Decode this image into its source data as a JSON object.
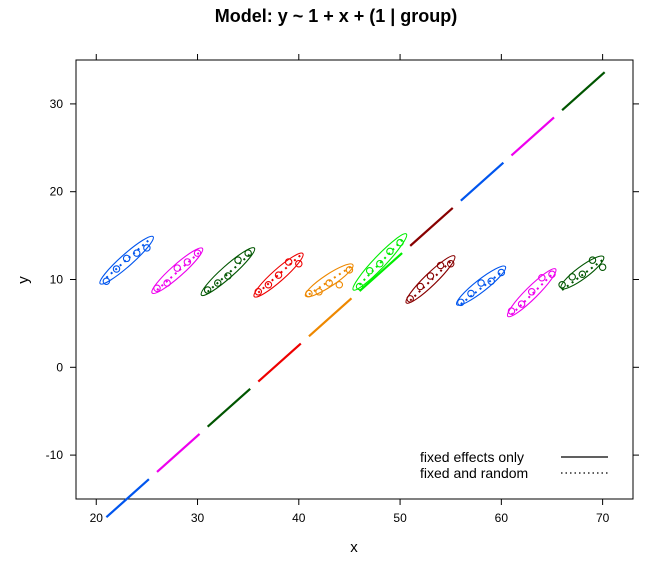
{
  "chart_data": {
    "type": "scatter",
    "title": "Model: y ~ 1 + x + (1 | group)",
    "xlabel": "x",
    "ylabel": "y",
    "xlim": [
      18,
      73
    ],
    "ylim": [
      -15,
      35
    ],
    "x_ticks": [
      20,
      30,
      40,
      50,
      60,
      70
    ],
    "y_ticks": [
      -10,
      0,
      10,
      20,
      30
    ],
    "grid": false,
    "legend": {
      "position": "bottom-right",
      "entries": [
        {
          "label": "fixed effects only",
          "linestyle": "solid"
        },
        {
          "label": "fixed and random",
          "linestyle": "dotted"
        }
      ]
    },
    "fixed_effects_line": {
      "intercept": -38.7,
      "slope": 1.03,
      "segments": [
        {
          "x": [
            21,
            25.2
          ],
          "color": "#0055EE"
        },
        {
          "x": [
            26,
            30.2
          ],
          "color": "#EE00EE"
        },
        {
          "x": [
            31,
            35.2
          ],
          "color": "#005500"
        },
        {
          "x": [
            36,
            40.2
          ],
          "color": "#EE0000"
        },
        {
          "x": [
            41,
            45.2
          ],
          "color": "#EE8800"
        },
        {
          "x": [
            46,
            50.2
          ],
          "color": "#00EE00"
        },
        {
          "x": [
            51,
            55.2
          ],
          "color": "#880000"
        },
        {
          "x": [
            56,
            60.2
          ],
          "color": "#0055EE"
        },
        {
          "x": [
            61,
            65.2
          ],
          "color": "#EE00EE"
        },
        {
          "x": [
            66,
            70.2
          ],
          "color": "#005500"
        }
      ]
    },
    "groups": [
      {
        "color": "#0055EE",
        "x": [
          21,
          22,
          23,
          24,
          25
        ],
        "y": [
          9.8,
          11.2,
          12.4,
          13.0,
          13.6
        ],
        "random_line": {
          "x": [
            21,
            25.2
          ],
          "y": [
            10.2,
            14.5
          ]
        },
        "ellipse": {
          "cx": 23,
          "cy": 12.2,
          "rx": 2.5,
          "ry": 3.3
        }
      },
      {
        "color": "#EE00EE",
        "x": [
          26,
          27,
          28,
          29,
          30
        ],
        "y": [
          9.0,
          9.6,
          11.3,
          12.0,
          13.0
        ],
        "random_line": {
          "x": [
            26,
            30.2
          ],
          "y": [
            8.8,
            13.1
          ]
        },
        "ellipse": {
          "cx": 28,
          "cy": 11.0,
          "rx": 2.5,
          "ry": 3.0
        }
      },
      {
        "color": "#005500",
        "x": [
          31,
          32,
          33,
          34,
          35
        ],
        "y": [
          8.8,
          9.6,
          10.4,
          12.2,
          13.0
        ],
        "random_line": {
          "x": [
            31,
            35.2
          ],
          "y": [
            8.6,
            12.9
          ]
        },
        "ellipse": {
          "cx": 33,
          "cy": 10.9,
          "rx": 2.5,
          "ry": 3.3
        }
      },
      {
        "color": "#EE0000",
        "x": [
          36,
          37,
          38,
          39,
          40
        ],
        "y": [
          8.6,
          9.4,
          10.5,
          12.0,
          11.8
        ],
        "random_line": {
          "x": [
            36,
            40.2
          ],
          "y": [
            8.5,
            12.8
          ]
        },
        "ellipse": {
          "cx": 38,
          "cy": 10.5,
          "rx": 2.5,
          "ry": 2.8
        }
      },
      {
        "color": "#EE8800",
        "x": [
          41,
          42,
          43,
          44,
          45
        ],
        "y": [
          8.4,
          8.6,
          9.6,
          9.4,
          11.1
        ],
        "random_line": {
          "x": [
            41,
            45.2
          ],
          "y": [
            8.3,
            11.5
          ]
        },
        "ellipse": {
          "cx": 43,
          "cy": 9.9,
          "rx": 2.5,
          "ry": 2.0
        }
      },
      {
        "color": "#00EE00",
        "x": [
          46,
          47,
          48,
          49,
          50
        ],
        "y": [
          9.2,
          11.0,
          11.8,
          13.2,
          14.2
        ],
        "random_line": {
          "x": [
            46,
            50.2
          ],
          "y": [
            9.4,
            14.5
          ]
        },
        "ellipse": {
          "cx": 48,
          "cy": 12.0,
          "rx": 2.5,
          "ry": 3.8
        }
      },
      {
        "color": "#880000",
        "x": [
          51,
          52,
          53,
          54,
          55
        ],
        "y": [
          7.8,
          9.2,
          10.4,
          11.6,
          11.8
        ],
        "random_line": {
          "x": [
            51,
            55.2
          ],
          "y": [
            7.6,
            12.3
          ]
        },
        "ellipse": {
          "cx": 53,
          "cy": 10.0,
          "rx": 2.5,
          "ry": 3.0
        }
      },
      {
        "color": "#0055EE",
        "x": [
          56,
          57,
          58,
          59,
          60
        ],
        "y": [
          7.4,
          8.4,
          9.6,
          9.8,
          10.8
        ],
        "random_line": {
          "x": [
            56,
            60.2
          ],
          "y": [
            7.2,
            11.0
          ]
        },
        "ellipse": {
          "cx": 58,
          "cy": 9.3,
          "rx": 2.5,
          "ry": 2.5
        }
      },
      {
        "color": "#EE00EE",
        "x": [
          61,
          62,
          63,
          64,
          65
        ],
        "y": [
          6.4,
          7.2,
          8.6,
          10.2,
          10.6
        ],
        "random_line": {
          "x": [
            61,
            65.2
          ],
          "y": [
            6.0,
            10.8
          ]
        },
        "ellipse": {
          "cx": 63,
          "cy": 8.5,
          "rx": 2.5,
          "ry": 3.0
        }
      },
      {
        "color": "#005500",
        "x": [
          66,
          67,
          68,
          69,
          70
        ],
        "y": [
          9.4,
          10.3,
          10.6,
          12.2,
          11.4
        ],
        "random_line": {
          "x": [
            66,
            70.2
          ],
          "y": [
            8.8,
            12.4
          ]
        },
        "ellipse": {
          "cx": 68,
          "cy": 10.8,
          "rx": 2.3,
          "ry": 1.9
        }
      }
    ]
  }
}
